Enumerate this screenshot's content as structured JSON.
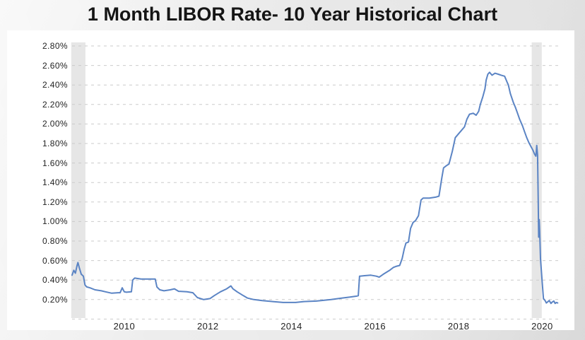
{
  "page": {
    "title": "1 Month LIBOR Rate- 10 Year Historical Chart"
  },
  "chart_data": {
    "type": "line",
    "title": "1 Month LIBOR Rate- 10 Year Historical Chart",
    "xlabel": "",
    "ylabel": "",
    "y_tick_labels": [
      "2.80%",
      "2.60%",
      "2.40%",
      "2.20%",
      "2.00%",
      "1.80%",
      "1.60%",
      "1.40%",
      "1.20%",
      "1.00%",
      "0.80%",
      "0.60%",
      "0.40%",
      "0.20%"
    ],
    "x_tick_labels": [
      "2010",
      "2012",
      "2014",
      "2016",
      "2018",
      "2020"
    ],
    "ylim": [
      0,
      2.8
    ],
    "y_grid_step": 0.2,
    "xlim_years": [
      2008.75,
      2020.45
    ],
    "grid": "horizontal dashed, on",
    "legend": "none",
    "line_color": "#5b84c4",
    "grid_color": "#cbcbcb",
    "recession_band_color": "#e6e6e6",
    "recession_bands_years": [
      [
        2008.73,
        2009.07
      ],
      [
        2019.75,
        2019.99
      ]
    ],
    "series": [
      {
        "name": "1 Month LIBOR Rate",
        "points": [
          [
            2008.75,
            0.45
          ],
          [
            2008.79,
            0.5
          ],
          [
            2008.83,
            0.47
          ],
          [
            2008.87,
            0.55
          ],
          [
            2008.89,
            0.58
          ],
          [
            2008.92,
            0.53
          ],
          [
            2008.97,
            0.46
          ],
          [
            2009.02,
            0.44
          ],
          [
            2009.06,
            0.35
          ],
          [
            2009.1,
            0.33
          ],
          [
            2009.18,
            0.32
          ],
          [
            2009.3,
            0.3
          ],
          [
            2009.45,
            0.29
          ],
          [
            2009.55,
            0.28
          ],
          [
            2009.7,
            0.265
          ],
          [
            2009.85,
            0.27
          ],
          [
            2009.9,
            0.27
          ],
          [
            2009.95,
            0.32
          ],
          [
            2010.0,
            0.28
          ],
          [
            2010.05,
            0.275
          ],
          [
            2010.17,
            0.28
          ],
          [
            2010.2,
            0.4
          ],
          [
            2010.25,
            0.42
          ],
          [
            2010.4,
            0.41
          ],
          [
            2010.6,
            0.41
          ],
          [
            2010.74,
            0.41
          ],
          [
            2010.78,
            0.33
          ],
          [
            2010.85,
            0.3
          ],
          [
            2010.95,
            0.29
          ],
          [
            2011.1,
            0.3
          ],
          [
            2011.2,
            0.31
          ],
          [
            2011.3,
            0.285
          ],
          [
            2011.5,
            0.28
          ],
          [
            2011.64,
            0.27
          ],
          [
            2011.75,
            0.22
          ],
          [
            2011.9,
            0.2
          ],
          [
            2012.05,
            0.21
          ],
          [
            2012.15,
            0.24
          ],
          [
            2012.3,
            0.28
          ],
          [
            2012.45,
            0.31
          ],
          [
            2012.55,
            0.34
          ],
          [
            2012.6,
            0.31
          ],
          [
            2012.7,
            0.28
          ],
          [
            2012.85,
            0.24
          ],
          [
            2012.95,
            0.215
          ],
          [
            2013.1,
            0.2
          ],
          [
            2013.3,
            0.19
          ],
          [
            2013.55,
            0.18
          ],
          [
            2013.8,
            0.17
          ],
          [
            2014.1,
            0.17
          ],
          [
            2014.3,
            0.18
          ],
          [
            2014.6,
            0.185
          ],
          [
            2014.95,
            0.2
          ],
          [
            2015.2,
            0.215
          ],
          [
            2015.4,
            0.225
          ],
          [
            2015.55,
            0.235
          ],
          [
            2015.6,
            0.24
          ],
          [
            2015.63,
            0.44
          ],
          [
            2015.75,
            0.445
          ],
          [
            2015.9,
            0.45
          ],
          [
            2016.03,
            0.44
          ],
          [
            2016.1,
            0.43
          ],
          [
            2016.2,
            0.46
          ],
          [
            2016.35,
            0.5
          ],
          [
            2016.44,
            0.53
          ],
          [
            2016.5,
            0.54
          ],
          [
            2016.59,
            0.55
          ],
          [
            2016.65,
            0.62
          ],
          [
            2016.7,
            0.72
          ],
          [
            2016.74,
            0.78
          ],
          [
            2016.8,
            0.79
          ],
          [
            2016.85,
            0.93
          ],
          [
            2016.91,
            0.99
          ],
          [
            2016.97,
            1.01
          ],
          [
            2017.04,
            1.06
          ],
          [
            2017.1,
            1.22
          ],
          [
            2017.15,
            1.24
          ],
          [
            2017.3,
            1.24
          ],
          [
            2017.45,
            1.25
          ],
          [
            2017.53,
            1.26
          ],
          [
            2017.6,
            1.45
          ],
          [
            2017.64,
            1.55
          ],
          [
            2017.7,
            1.57
          ],
          [
            2017.77,
            1.59
          ],
          [
            2017.85,
            1.72
          ],
          [
            2017.92,
            1.86
          ],
          [
            2018.0,
            1.9
          ],
          [
            2018.08,
            1.94
          ],
          [
            2018.14,
            1.97
          ],
          [
            2018.2,
            2.05
          ],
          [
            2018.26,
            2.1
          ],
          [
            2018.35,
            2.11
          ],
          [
            2018.42,
            2.09
          ],
          [
            2018.48,
            2.13
          ],
          [
            2018.52,
            2.2
          ],
          [
            2018.58,
            2.28
          ],
          [
            2018.63,
            2.36
          ],
          [
            2018.66,
            2.45
          ],
          [
            2018.7,
            2.51
          ],
          [
            2018.74,
            2.53
          ],
          [
            2018.8,
            2.5
          ],
          [
            2018.87,
            2.52
          ],
          [
            2018.95,
            2.51
          ],
          [
            2019.02,
            2.5
          ],
          [
            2019.1,
            2.49
          ],
          [
            2019.16,
            2.43
          ],
          [
            2019.19,
            2.4
          ],
          [
            2019.24,
            2.31
          ],
          [
            2019.31,
            2.22
          ],
          [
            2019.36,
            2.17
          ],
          [
            2019.41,
            2.11
          ],
          [
            2019.46,
            2.05
          ],
          [
            2019.53,
            1.98
          ],
          [
            2019.58,
            1.92
          ],
          [
            2019.63,
            1.86
          ],
          [
            2019.68,
            1.81
          ],
          [
            2019.73,
            1.77
          ],
          [
            2019.78,
            1.73
          ],
          [
            2019.82,
            1.69
          ],
          [
            2019.85,
            1.67
          ],
          [
            2019.87,
            1.78
          ],
          [
            2019.89,
            1.68
          ],
          [
            2019.905,
            1.2
          ],
          [
            2019.915,
            0.84
          ],
          [
            2019.93,
            1.02
          ],
          [
            2019.94,
            0.92
          ],
          [
            2019.96,
            0.62
          ],
          [
            2020.0,
            0.38
          ],
          [
            2020.03,
            0.21
          ],
          [
            2020.07,
            0.19
          ],
          [
            2020.1,
            0.165
          ],
          [
            2020.14,
            0.18
          ],
          [
            2020.17,
            0.19
          ],
          [
            2020.21,
            0.16
          ],
          [
            2020.24,
            0.175
          ],
          [
            2020.28,
            0.185
          ],
          [
            2020.31,
            0.16
          ],
          [
            2020.34,
            0.17
          ],
          [
            2020.37,
            0.165
          ]
        ]
      }
    ]
  }
}
